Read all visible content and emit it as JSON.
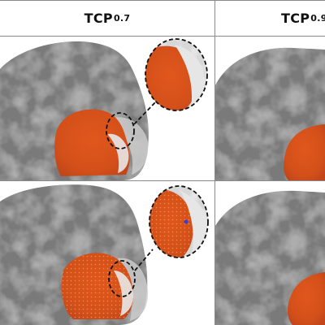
{
  "header": {
    "left_label": "TCP",
    "left_subscript": "0.7",
    "right_label": "TCP",
    "right_subscript": "0.9"
  },
  "colors": {
    "activation": "#d9531e",
    "activation_dark": "#b83d12",
    "brain_gray": "#6e6e6e",
    "grid": "#8a8a8a"
  }
}
